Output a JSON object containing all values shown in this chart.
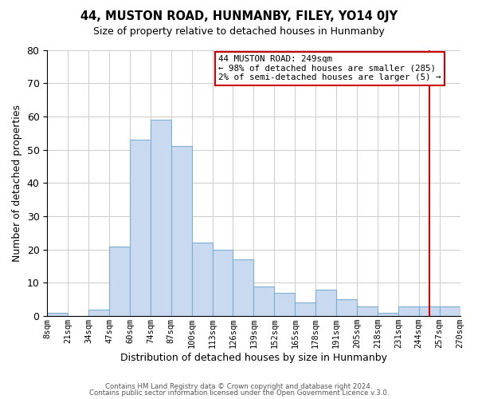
{
  "title": "44, MUSTON ROAD, HUNMANBY, FILEY, YO14 0JY",
  "subtitle": "Size of property relative to detached houses in Hunmanby",
  "xlabel": "Distribution of detached houses by size in Hunmanby",
  "ylabel": "Number of detached properties",
  "bin_labels": [
    "8sqm",
    "21sqm",
    "34sqm",
    "47sqm",
    "60sqm",
    "74sqm",
    "87sqm",
    "100sqm",
    "113sqm",
    "126sqm",
    "139sqm",
    "152sqm",
    "165sqm",
    "178sqm",
    "191sqm",
    "205sqm",
    "218sqm",
    "231sqm",
    "244sqm",
    "257sqm",
    "270sqm"
  ],
  "bar_heights": [
    1,
    0,
    2,
    21,
    53,
    59,
    51,
    22,
    20,
    17,
    9,
    7,
    4,
    8,
    5,
    3,
    1,
    3,
    3,
    3
  ],
  "bar_color": "#c9d9f0",
  "bar_edge_color": "#7bafd4",
  "grid_color": "#cccccc",
  "vline_color": "#cc0000",
  "vline_x": 18.5,
  "annotation_title": "44 MUSTON ROAD: 249sqm",
  "annotation_line2": "← 98% of detached houses are smaller (285)",
  "annotation_line3": "2% of semi-detached houses are larger (5) →",
  "annotation_box_color": "#cc0000",
  "annotation_box_bg": "#ffffff",
  "footer_line1": "Contains HM Land Registry data © Crown copyright and database right 2024.",
  "footer_line2": "Contains public sector information licensed under the Open Government Licence v.3.0.",
  "ylim": [
    0,
    80
  ],
  "yticks": [
    0,
    10,
    20,
    30,
    40,
    50,
    60,
    70,
    80
  ],
  "figsize": [
    6.0,
    5.0
  ],
  "dpi": 100
}
